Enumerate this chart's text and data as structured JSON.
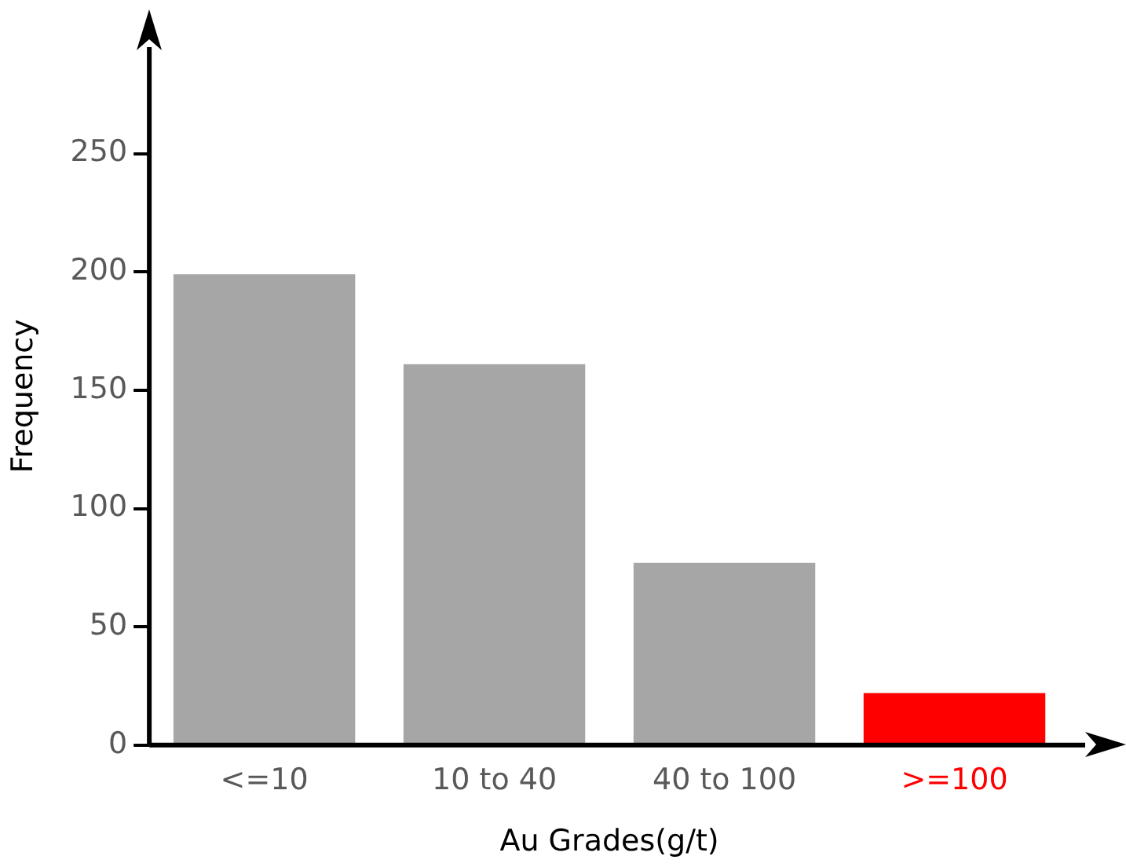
{
  "chart_data": {
    "type": "bar",
    "xlabel": "Au Grades(g/t)",
    "ylabel": "Frequency",
    "categories": [
      "<=10",
      "10 to 40",
      "40 to 100",
      ">=100"
    ],
    "values": [
      199,
      161,
      77,
      22
    ],
    "colors": [
      "#a6a6a6",
      "#a6a6a6",
      "#a6a6a6",
      "#ff0000"
    ],
    "ylim": [
      0,
      295
    ],
    "yticks": [
      0,
      50,
      100,
      150,
      200,
      250
    ],
    "grid": false,
    "legend": false
  }
}
